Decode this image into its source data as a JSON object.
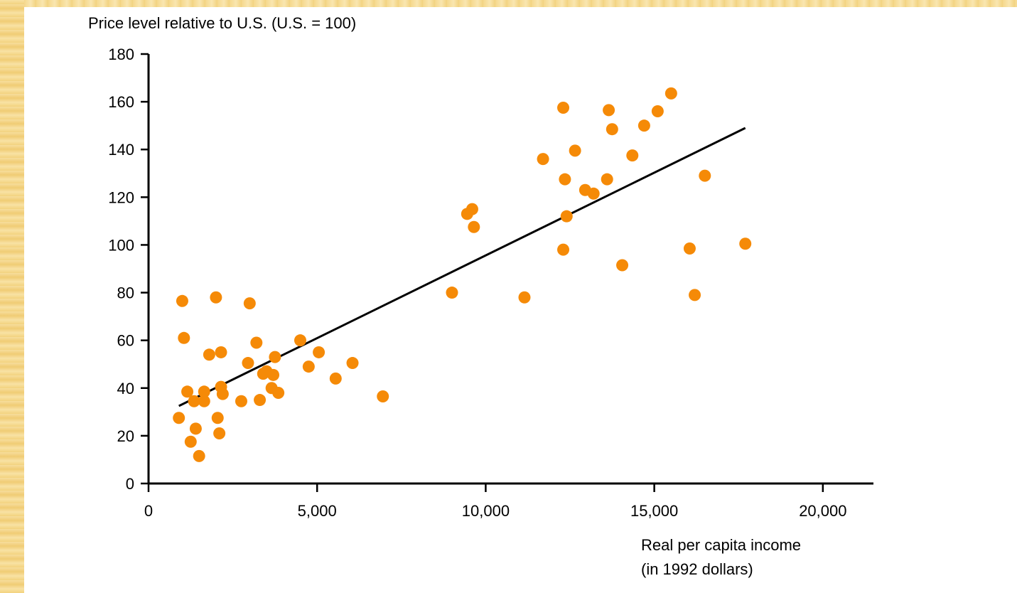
{
  "chart_data": {
    "type": "scatter",
    "ylabel": "Price level relative to U.S. (U.S. = 100)",
    "xlabel_lines": [
      "Real per capita income",
      "(in 1992 dollars)"
    ],
    "xlim": [
      0,
      21500
    ],
    "ylim": [
      0,
      180
    ],
    "x_ticks": [
      0,
      5000,
      10000,
      15000,
      20000
    ],
    "x_tick_labels": [
      "0",
      "5,000",
      "10,000",
      "15,000",
      "20,000"
    ],
    "y_ticks": [
      0,
      20,
      40,
      60,
      80,
      100,
      120,
      140,
      160,
      180
    ],
    "y_tick_labels": [
      "0",
      "20",
      "40",
      "60",
      "80",
      "100",
      "120",
      "140",
      "160",
      "180"
    ],
    "grid": false,
    "point_color": "#f58a07",
    "line_color": "#000000",
    "trend_line": {
      "x": [
        900,
        17700
      ],
      "y": [
        32.5,
        149
      ]
    },
    "points": [
      [
        900,
        27.5
      ],
      [
        1000,
        76.5
      ],
      [
        1050,
        61
      ],
      [
        1150,
        38.5
      ],
      [
        1250,
        17.5
      ],
      [
        1350,
        34.5
      ],
      [
        1400,
        23
      ],
      [
        1500,
        11.5
      ],
      [
        1650,
        38.5
      ],
      [
        1650,
        34.5
      ],
      [
        1800,
        54
      ],
      [
        2000,
        78
      ],
      [
        2050,
        27.5
      ],
      [
        2100,
        21
      ],
      [
        2150,
        55
      ],
      [
        2150,
        40.5
      ],
      [
        2200,
        37.5
      ],
      [
        2750,
        34.5
      ],
      [
        2950,
        50.5
      ],
      [
        3000,
        75.5
      ],
      [
        3200,
        59
      ],
      [
        3300,
        35
      ],
      [
        3400,
        46
      ],
      [
        3500,
        47
      ],
      [
        3650,
        40
      ],
      [
        3700,
        45.5
      ],
      [
        3750,
        53
      ],
      [
        3850,
        38
      ],
      [
        4500,
        60
      ],
      [
        4750,
        49
      ],
      [
        5050,
        55
      ],
      [
        5550,
        44
      ],
      [
        6050,
        50.5
      ],
      [
        6950,
        36.5
      ],
      [
        9000,
        80
      ],
      [
        9450,
        113
      ],
      [
        9600,
        115
      ],
      [
        9650,
        107.5
      ],
      [
        11150,
        78
      ],
      [
        11700,
        136
      ],
      [
        12300,
        157.5
      ],
      [
        12300,
        98
      ],
      [
        12350,
        127.5
      ],
      [
        12400,
        112
      ],
      [
        12650,
        139.5
      ],
      [
        12950,
        123
      ],
      [
        13200,
        121.5
      ],
      [
        13600,
        127.5
      ],
      [
        13650,
        156.5
      ],
      [
        13750,
        148.5
      ],
      [
        14050,
        91.5
      ],
      [
        14350,
        137.5
      ],
      [
        14700,
        150
      ],
      [
        15100,
        156
      ],
      [
        15500,
        163.5
      ],
      [
        16050,
        98.5
      ],
      [
        16200,
        79
      ],
      [
        16500,
        129
      ],
      [
        17700,
        100.5
      ]
    ]
  }
}
